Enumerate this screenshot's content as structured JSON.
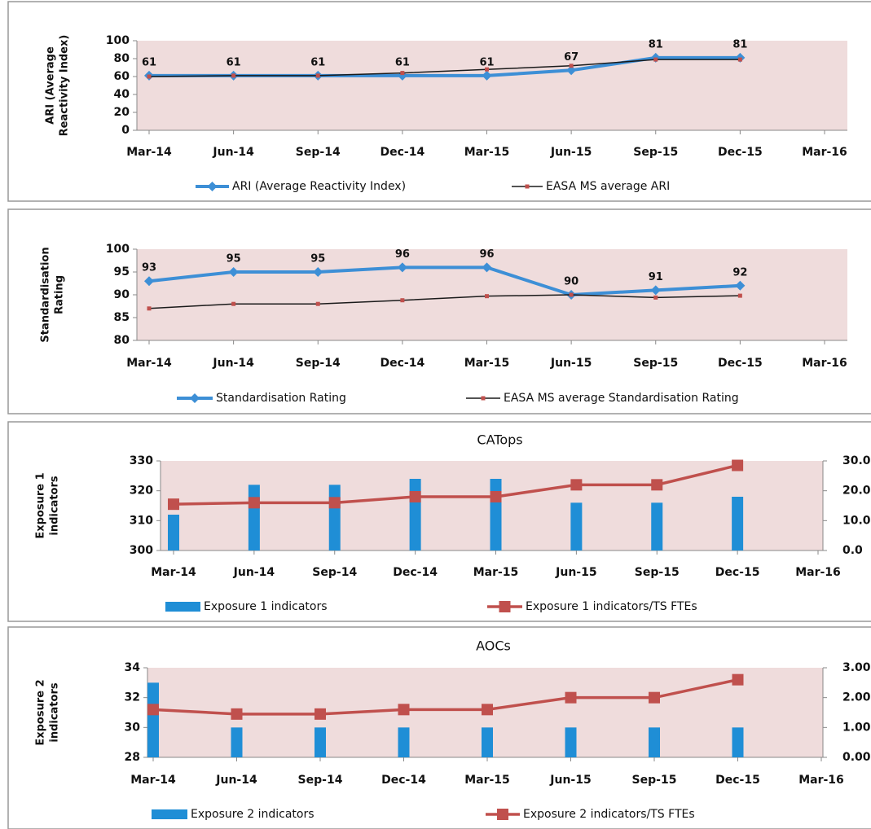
{
  "chart_data": [
    {
      "type": "line",
      "ylabel": [
        "ARI (Average",
        "Reactivity Index)"
      ],
      "categories": [
        "Mar-14",
        "Jun-14",
        "Sep-14",
        "Dec-14",
        "Mar-15",
        "Jun-15",
        "Sep-15",
        "Dec-15",
        "Mar-16"
      ],
      "ylim": [
        0,
        100
      ],
      "yticks": [
        0,
        20,
        40,
        60,
        80,
        100
      ],
      "background": "#efdcdc",
      "series": [
        {
          "name": "ARI (Average Reactivity Index)",
          "color": "#3d8fd6",
          "marker": "diamond",
          "data_labels": true,
          "values": [
            61,
            61,
            61,
            61,
            61,
            67,
            81,
            81,
            null
          ]
        },
        {
          "name": "EASA MS average ARI",
          "color": "#1a1a1a",
          "marker_color": "#c0504d",
          "marker": "square",
          "values": [
            60,
            61,
            61,
            64,
            68,
            72,
            79,
            79,
            null
          ]
        }
      ]
    },
    {
      "type": "line",
      "ylabel": [
        "Standardisation",
        "Rating"
      ],
      "categories": [
        "Mar-14",
        "Jun-14",
        "Sep-14",
        "Dec-14",
        "Mar-15",
        "Jun-15",
        "Sep-15",
        "Dec-15",
        "Mar-16"
      ],
      "ylim": [
        80,
        100
      ],
      "yticks": [
        80,
        85,
        90,
        95,
        100
      ],
      "background": "#efdcdc",
      "series": [
        {
          "name": "Standardisation Rating",
          "color": "#3d8fd6",
          "marker": "diamond",
          "data_labels": true,
          "values": [
            93,
            95,
            95,
            96,
            96,
            90,
            91,
            92,
            null
          ]
        },
        {
          "name": "EASA MS average Standardisation Rating",
          "color": "#1a1a1a",
          "marker_color": "#c0504d",
          "marker": "square",
          "values": [
            87,
            88,
            88,
            88.8,
            89.7,
            90,
            89.4,
            89.8,
            null
          ]
        }
      ]
    },
    {
      "type": "combo",
      "title": "CATops",
      "ylabel": [
        "Exposure 1",
        "indicators"
      ],
      "categories": [
        "Mar-14",
        "Jun-14",
        "Sep-14",
        "Dec-14",
        "Mar-15",
        "Jun-15",
        "Sep-15",
        "Dec-15",
        "Mar-16"
      ],
      "ylim": [
        300,
        330
      ],
      "yticks": [
        300,
        310,
        320,
        330
      ],
      "y2lim": [
        0,
        30
      ],
      "y2ticks": [
        {
          "value": 0,
          "label": "0.0"
        },
        {
          "value": 10,
          "label": "10.0"
        },
        {
          "value": 20,
          "label": "20.0"
        },
        {
          "value": 30,
          "label": "30.0"
        }
      ],
      "background": "#efdcdc",
      "series": [
        {
          "name": "Exposure 1 indicators",
          "color": "#1f8ed6",
          "kind": "bar",
          "values": [
            312,
            322,
            322,
            324,
            324,
            316,
            316,
            318,
            null
          ]
        },
        {
          "name": "Exposure 1 indicators/TS FTEs",
          "color": "#c0504d",
          "kind": "line",
          "marker": "square",
          "axis": "y2",
          "values": [
            15.5,
            16,
            16,
            18,
            18,
            22,
            22,
            28.5,
            null
          ]
        }
      ]
    },
    {
      "type": "combo",
      "title": "AOCs",
      "ylabel": [
        "Exposure 2",
        "indicators"
      ],
      "categories": [
        "Mar-14",
        "Jun-14",
        "Sep-14",
        "Dec-14",
        "Mar-15",
        "Jun-15",
        "Sep-15",
        "Dec-15",
        "Mar-16"
      ],
      "ylim": [
        28,
        34
      ],
      "yticks": [
        28,
        30,
        32,
        34
      ],
      "y2lim": [
        0,
        3
      ],
      "y2ticks": [
        {
          "value": 0,
          "label": "0.00"
        },
        {
          "value": 1,
          "label": "1.00"
        },
        {
          "value": 2,
          "label": "2.00"
        },
        {
          "value": 3,
          "label": "3.00"
        }
      ],
      "background": "#efdcdc",
      "series": [
        {
          "name": "Exposure 2 indicators",
          "color": "#1f8ed6",
          "kind": "bar",
          "values": [
            33,
            30,
            30,
            30,
            30,
            30,
            30,
            30,
            null
          ]
        },
        {
          "name": "Exposure 2 indicators/TS FTEs",
          "color": "#c0504d",
          "kind": "line",
          "marker": "square",
          "axis": "y2",
          "values": [
            1.6,
            1.45,
            1.45,
            1.6,
            1.6,
            2.0,
            2.0,
            2.6,
            null
          ]
        }
      ]
    }
  ]
}
